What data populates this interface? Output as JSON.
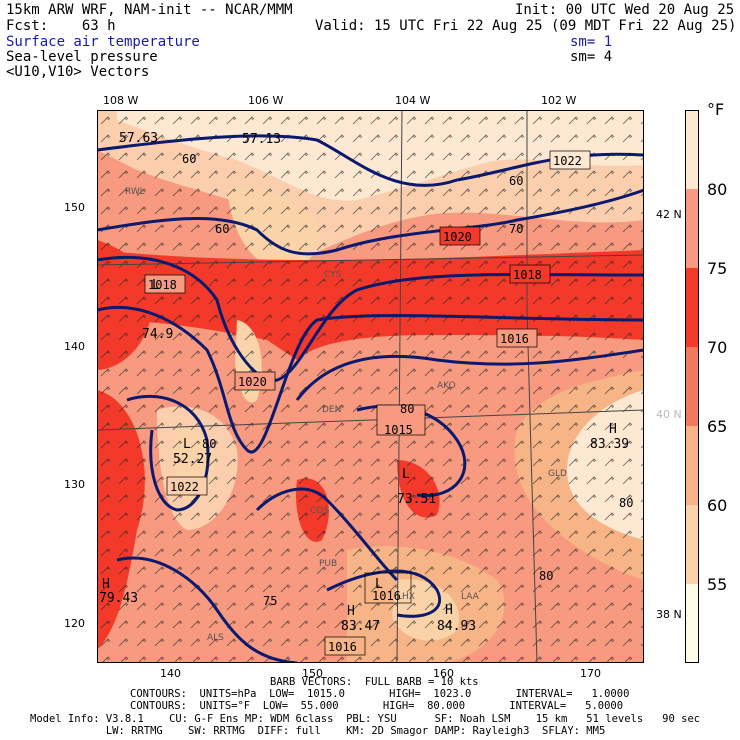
{
  "header": {
    "model_line": "15km ARW WRF, NAM-init -- NCAR/MMM",
    "init_line": "Init: 00 UTC Wed 20 Aug 25",
    "fcst_line": "Fcst:    63 h",
    "valid_line": "Valid: 15 UTC Fri 22 Aug 25 (09 MDT Fri 22 Aug 25)",
    "fields": [
      {
        "name": "Surface air temperature",
        "sm": "sm= 1"
      },
      {
        "name": "Sea-level pressure",
        "sm": "sm= 4"
      },
      {
        "name": "<U10,V10> Vectors",
        "sm": ""
      }
    ]
  },
  "axes": {
    "top_lon": [
      "108 W",
      "106 W",
      "104 W",
      "102 W"
    ],
    "left": [
      "150",
      "140",
      "130",
      "120"
    ],
    "bottom": [
      "140",
      "150",
      "160",
      "170"
    ],
    "right_lat": [
      "42 N",
      "40 N",
      "38 N"
    ]
  },
  "colorbar": {
    "unit": "°F",
    "labels": [
      "80",
      "75",
      "70",
      "65",
      "60",
      "55"
    ],
    "colors": [
      "#fde8d2",
      "#fbcfae",
      "#f79a80",
      "#f06050",
      "#f33a2a",
      "#f17a5e",
      "#f7b486",
      "#fad4a8",
      "#fdf0d8",
      "#fffbe6"
    ]
  },
  "map_labels": {
    "isobars": [
      "1022",
      "1020",
      "1018",
      "1018",
      "1016",
      "1020",
      "1015",
      "1022",
      "1016",
      "1016"
    ],
    "temps": [
      "57.63",
      "57.13",
      "74.9",
      "52.27",
      "73.51",
      "83.39",
      "83.47",
      "84.93",
      "79.43"
    ],
    "contours": [
      "60",
      "60",
      "60",
      "70",
      "80",
      "80",
      "80",
      "75",
      "80"
    ],
    "hl": [
      "H",
      "H",
      "H",
      "H",
      "L",
      "L",
      "L",
      "L"
    ],
    "stations": [
      "RWL",
      "CYS",
      "DEN",
      "AKO",
      "GLD",
      "COS",
      "PUB",
      "LAA",
      "ALS",
      "LHX"
    ]
  },
  "footer": {
    "barb": "BARB VECTORS:  FULL BARB = 10 kts",
    "contours1": "CONTOURS:  UNITS=hPa  LOW=  1015.0       HIGH=  1023.0       INTERVAL=   1.0000",
    "contours2": "CONTOURS:  UNITS=°F  LOW=  55.000       HIGH=  80.000       INTERVAL=   5.0000",
    "info1": "Model Info: V3.8.1    CU: G-F Ens MP: WDM 6class  PBL: YSU      SF: Noah LSM    15 km   51 levels   90 sec",
    "info2": "            LW: RRTMG    SW: RRTMG  DIFF: full    KM: 2D Smagor DAMP: Rayleigh3  SFLAY: MM5"
  }
}
